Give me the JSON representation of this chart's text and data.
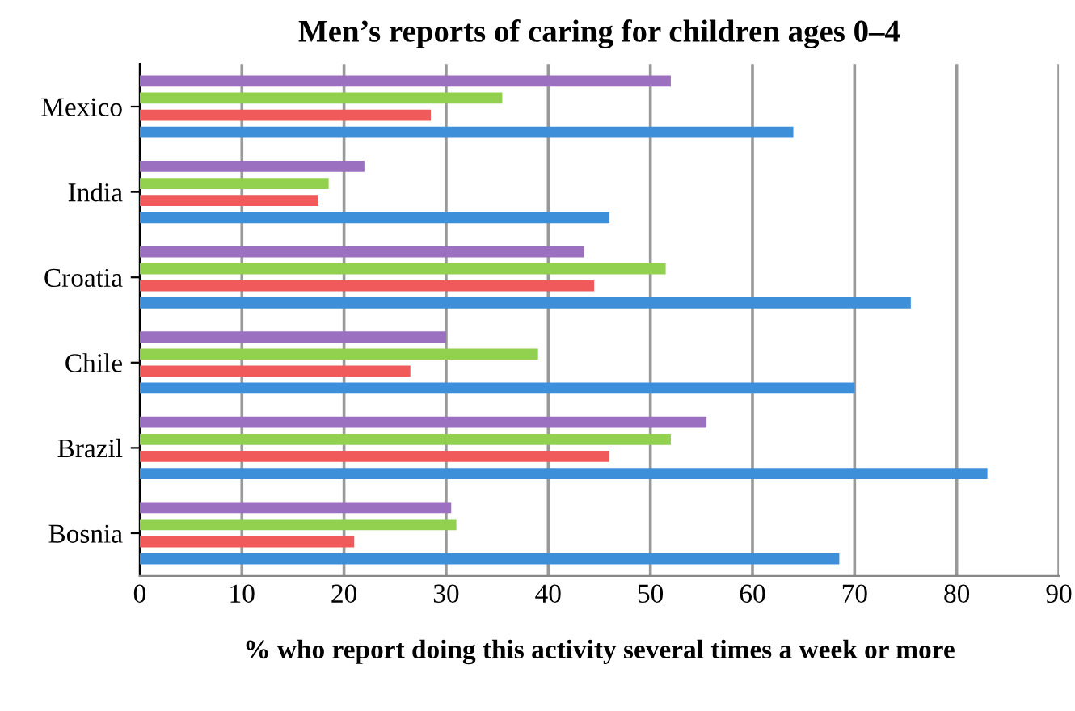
{
  "chart_data": {
    "type": "bar",
    "orientation": "horizontal",
    "title": "Men’s reports of caring for children ages 0–4",
    "xlabel": "% who report doing this activity several times a week or more",
    "categories": [
      "Mexico",
      "India",
      "Croatia",
      "Chile",
      "Brazil",
      "Bosnia"
    ],
    "series": [
      {
        "color": "#9b70c0",
        "values": [
          52,
          22,
          43.5,
          30,
          55.5,
          30.5
        ]
      },
      {
        "color": "#92d050",
        "values": [
          35.5,
          18.5,
          51.5,
          39,
          52,
          31
        ]
      },
      {
        "color": "#f05a5a",
        "values": [
          28.5,
          17.5,
          44.5,
          26.5,
          46,
          21
        ]
      },
      {
        "color": "#3d8fd9",
        "values": [
          64,
          46,
          75.5,
          70,
          83,
          68.5
        ]
      }
    ],
    "xlim": [
      0,
      90
    ],
    "xticks": [
      0,
      10,
      20,
      30,
      40,
      50,
      60,
      70,
      80,
      90
    ],
    "grid": "x",
    "legend": false
  }
}
